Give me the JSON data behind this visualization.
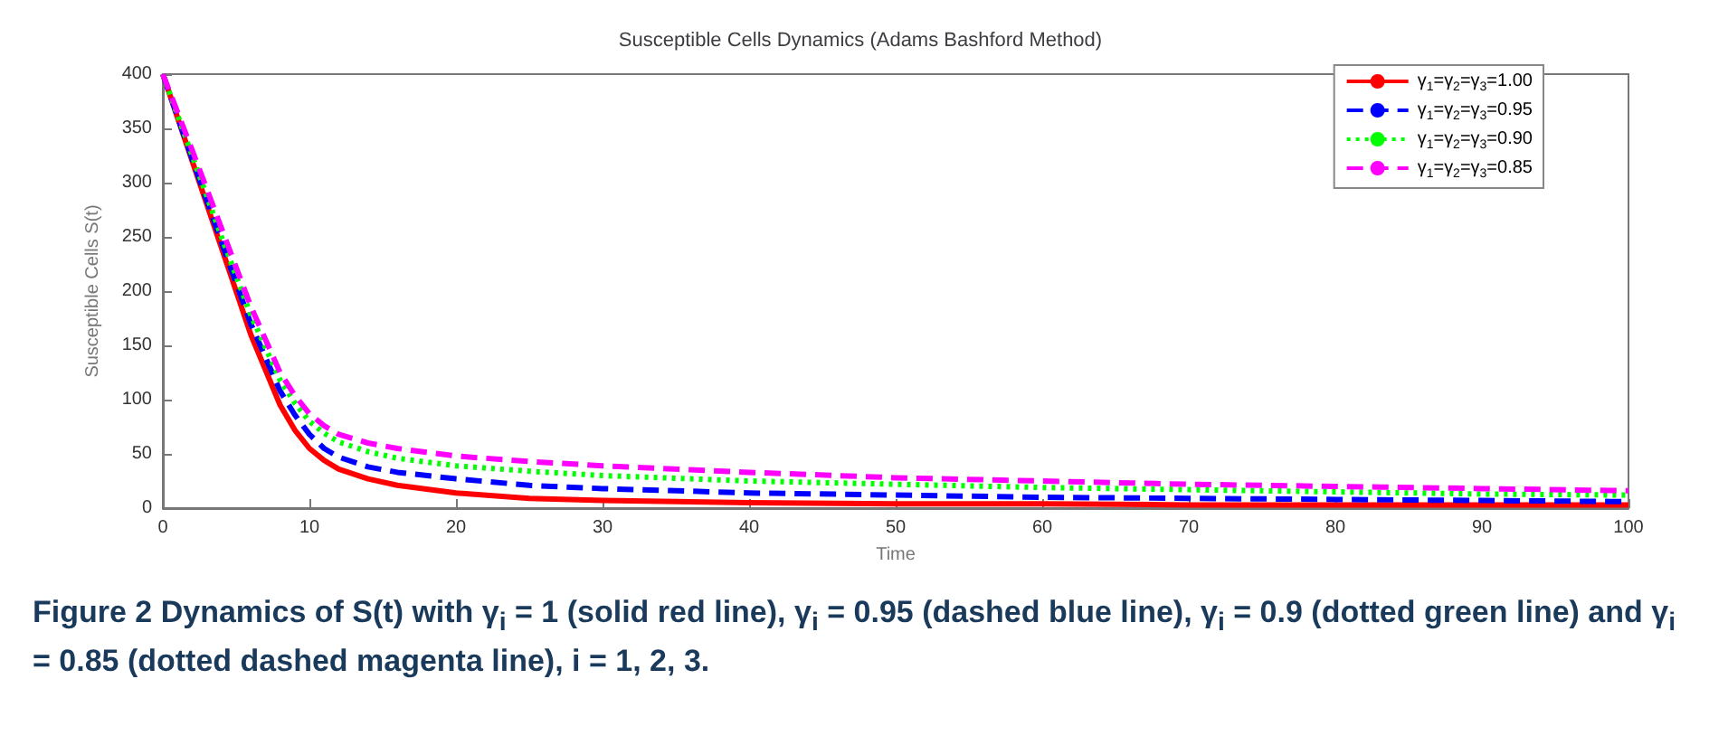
{
  "chart_data": {
    "type": "line",
    "title": "Susceptible Cells Dynamics (Adams Bashford Method)",
    "xlabel": "Time",
    "ylabel": "Susceptible Cells S(t)",
    "x": [
      0,
      2,
      4,
      6,
      8,
      9,
      10,
      11,
      12,
      14,
      16,
      20,
      25,
      30,
      40,
      50,
      60,
      70,
      80,
      90,
      100
    ],
    "series": [
      {
        "name": "γ$_{1}$=γ$_{2}$=γ$_{3}$=1.00",
        "color": "#ff0000",
        "line_style": "solid",
        "values": [
          400,
          320,
          240,
          160,
          95,
          72,
          55,
          44,
          36,
          27,
          21,
          14,
          9,
          7,
          5,
          4,
          4,
          3,
          3,
          3,
          3
        ]
      },
      {
        "name": "γ$_{1}$=γ$_{2}$=γ$_{3}$=0.95",
        "color": "#0000ff",
        "line_style": "dashed",
        "values": [
          400,
          322,
          245,
          170,
          108,
          86,
          68,
          55,
          47,
          38,
          33,
          27,
          21,
          18,
          14,
          12,
          10,
          9,
          8,
          7,
          6
        ]
      },
      {
        "name": "γ$_{1}$=γ$_{2}$=γ$_{3}$=0.90",
        "color": "#00ff00",
        "line_style": "dotted",
        "values": [
          400,
          325,
          250,
          178,
          118,
          97,
          80,
          69,
          61,
          52,
          46,
          39,
          34,
          30,
          25,
          22,
          19,
          17,
          15,
          13,
          12
        ]
      },
      {
        "name": "γ$_{1}$=γ$_{2}$=γ$_{3}$=0.85",
        "color": "#ff00ff",
        "line_style": "dashed",
        "values": [
          400,
          330,
          258,
          186,
          125,
          104,
          87,
          76,
          68,
          60,
          55,
          48,
          43,
          39,
          33,
          28,
          25,
          22,
          20,
          18,
          16
        ]
      }
    ],
    "xlim": [
      0,
      100
    ],
    "xticks": [
      0,
      10,
      20,
      30,
      40,
      50,
      60,
      70,
      80,
      90,
      100
    ],
    "ylim": [
      0,
      400
    ],
    "yticks": [
      0,
      50,
      100,
      150,
      200,
      250,
      300,
      350,
      400
    ],
    "grid": false,
    "legend": "top right",
    "marker": "none",
    "annotations": [
      "Figure 2  Dynamics of S(t) with γ$_{i}$ = 1 (solid red line), γ$_{i}$ = 0.95 (dashed blue line), γ$_{i}$ = 0.9 (dotted green line) and γ$_{i}$ = 0.85 (dotted dashed magenta line), i = 1, 2, 3."
    ]
  }
}
